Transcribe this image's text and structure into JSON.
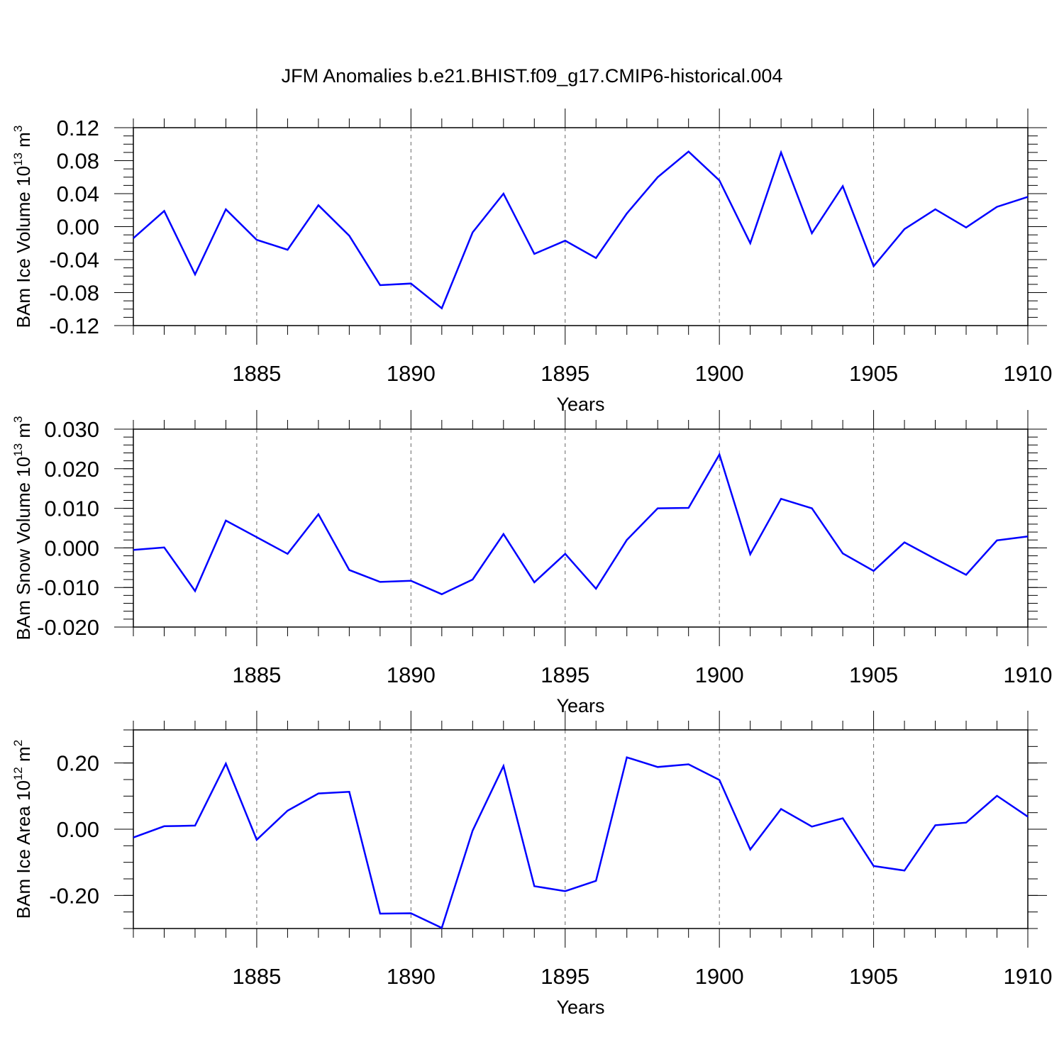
{
  "title": "JFM Anomalies b.e21.BHIST.f09_g17.CMIP6-historical.004",
  "line_color": "#0000ff",
  "chart_data": [
    {
      "type": "line",
      "ylabel_text": "BAm Ice Volume 10",
      "ylabel_exp": "13",
      "ylabel_unit": "m",
      "ylabel_unit_exp": "3",
      "xlabel": "Years",
      "xlim": [
        1881,
        1910
      ],
      "ylim": [
        -0.12,
        0.12
      ],
      "x_ticks": [
        1885,
        1890,
        1895,
        1900,
        1905,
        1910
      ],
      "x_tick_labels": [
        "1885",
        "1890",
        "1895",
        "1900",
        "1905",
        "1910"
      ],
      "y_ticks": [
        -0.12,
        -0.08,
        -0.04,
        0.0,
        0.04,
        0.08,
        0.12
      ],
      "y_tick_labels": [
        "-0.12",
        "-0.08",
        "-0.04",
        "0.00",
        "0.04",
        "0.08",
        "0.12"
      ],
      "y_minor_step": 0.01,
      "x": [
        1881,
        1882,
        1883,
        1884,
        1885,
        1886,
        1887,
        1888,
        1889,
        1890,
        1891,
        1892,
        1893,
        1894,
        1895,
        1896,
        1897,
        1898,
        1899,
        1900,
        1901,
        1902,
        1903,
        1904,
        1905,
        1906,
        1907,
        1908,
        1909,
        1910
      ],
      "values": [
        -0.014,
        0.019,
        -0.058,
        0.021,
        -0.016,
        -0.028,
        0.026,
        -0.011,
        -0.071,
        -0.069,
        -0.099,
        -0.007,
        0.04,
        -0.033,
        -0.017,
        -0.038,
        0.016,
        0.06,
        0.091,
        0.056,
        -0.02,
        0.09,
        -0.008,
        0.049,
        -0.048,
        -0.003,
        0.021,
        -0.001,
        0.024,
        0.036
      ]
    },
    {
      "type": "line",
      "ylabel_text": "BAm Snow Volume 10",
      "ylabel_exp": "13",
      "ylabel_unit": "m",
      "ylabel_unit_exp": "3",
      "xlabel": "Years",
      "xlim": [
        1881,
        1910
      ],
      "ylim": [
        -0.02,
        0.03
      ],
      "x_ticks": [
        1885,
        1890,
        1895,
        1900,
        1905,
        1910
      ],
      "x_tick_labels": [
        "1885",
        "1890",
        "1895",
        "1900",
        "1905",
        "1910"
      ],
      "y_ticks": [
        -0.02,
        -0.01,
        0.0,
        0.01,
        0.02,
        0.03
      ],
      "y_tick_labels": [
        "-0.020",
        "-0.010",
        "0.000",
        "0.010",
        "0.020",
        "0.030"
      ],
      "y_minor_step": 0.002,
      "x": [
        1881,
        1882,
        1883,
        1884,
        1885,
        1886,
        1887,
        1888,
        1889,
        1890,
        1891,
        1892,
        1893,
        1894,
        1895,
        1896,
        1897,
        1898,
        1899,
        1900,
        1901,
        1902,
        1903,
        1904,
        1905,
        1906,
        1907,
        1908,
        1909,
        1910
      ],
      "values": [
        -0.0005,
        0.0001,
        -0.0109,
        0.0069,
        0.0027,
        -0.0015,
        0.0085,
        -0.0056,
        -0.0086,
        -0.0083,
        -0.0117,
        -0.008,
        0.0035,
        -0.0087,
        -0.0015,
        -0.0103,
        0.002,
        0.01,
        0.0101,
        0.0236,
        -0.0016,
        0.0124,
        0.01,
        -0.0014,
        -0.0058,
        0.0014,
        -0.0028,
        -0.0068,
        0.0019,
        0.0029
      ]
    },
    {
      "type": "line",
      "ylabel_text": "BAm Ice Area 10",
      "ylabel_exp": "12",
      "ylabel_unit": "m",
      "ylabel_unit_exp": "2",
      "xlabel": "Years",
      "xlim": [
        1881,
        1910
      ],
      "ylim": [
        -0.3,
        0.3
      ],
      "x_ticks": [
        1885,
        1890,
        1895,
        1900,
        1905,
        1910
      ],
      "x_tick_labels": [
        "1885",
        "1890",
        "1895",
        "1900",
        "1905",
        "1910"
      ],
      "y_ticks": [
        -0.2,
        0.0,
        0.2
      ],
      "y_tick_labels": [
        "-0.20",
        "0.00",
        "0.20"
      ],
      "y_minor_step": 0.05,
      "x": [
        1881,
        1882,
        1883,
        1884,
        1885,
        1886,
        1887,
        1888,
        1889,
        1890,
        1891,
        1892,
        1893,
        1894,
        1895,
        1896,
        1897,
        1898,
        1899,
        1900,
        1901,
        1902,
        1903,
        1904,
        1905,
        1906,
        1907,
        1908,
        1909,
        1910
      ],
      "values": [
        -0.025,
        0.009,
        0.011,
        0.198,
        -0.032,
        0.056,
        0.108,
        0.113,
        -0.255,
        -0.254,
        -0.298,
        -0.004,
        0.191,
        -0.172,
        -0.187,
        -0.156,
        0.217,
        0.188,
        0.196,
        0.149,
        -0.061,
        0.061,
        0.008,
        0.033,
        -0.111,
        -0.125,
        0.012,
        0.02,
        0.101,
        0.038
      ]
    }
  ]
}
